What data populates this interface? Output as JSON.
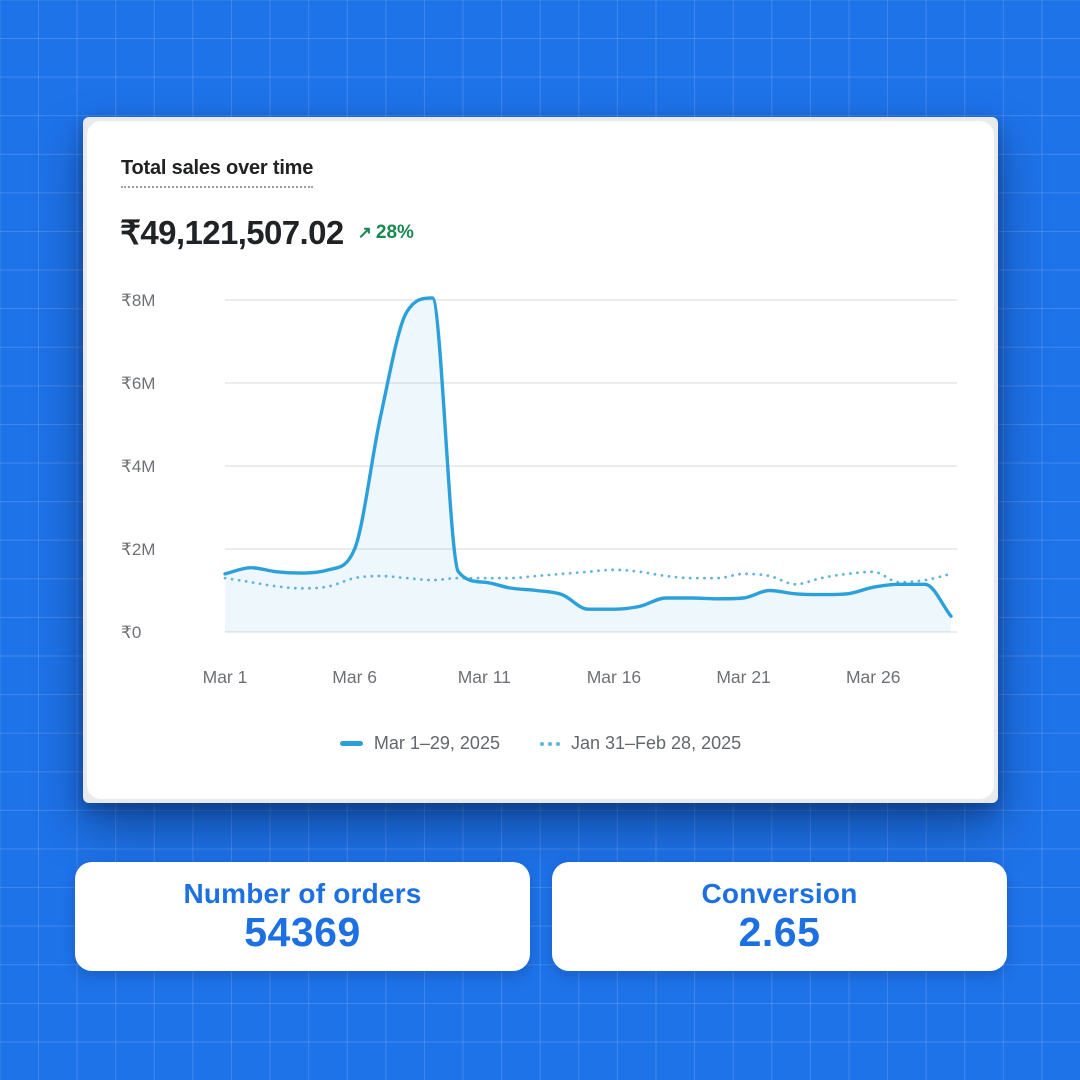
{
  "colors": {
    "page_background": "#1E73E9",
    "page_grid_line": "rgba(255,255,255,0.15)",
    "current_line": "#2CA0DA",
    "previous_line": "#62B4DF",
    "area_fill": "rgba(44,160,218,0.08)",
    "chart_gridline": "#e4e6e8",
    "axis_label": "#6d7175",
    "title_text": "#202223",
    "change_green": "#178a50",
    "stat_card_text": "#1D70E2"
  },
  "sales_card": {
    "title": "Total sales over time",
    "amount": "₹49,121,507.02",
    "change_arrow": "↗",
    "change": "28%"
  },
  "chart_data": {
    "type": "line",
    "title": "Total sales over time",
    "unit": "INR millions",
    "x": [
      "Mar 1",
      "Mar 2",
      "Mar 3",
      "Mar 4",
      "Mar 5",
      "Mar 6",
      "Mar 7",
      "Mar 8",
      "Mar 9",
      "Mar 10",
      "Mar 11",
      "Mar 12",
      "Mar 13",
      "Mar 14",
      "Mar 15",
      "Mar 16",
      "Mar 17",
      "Mar 18",
      "Mar 19",
      "Mar 20",
      "Mar 21",
      "Mar 22",
      "Mar 23",
      "Mar 24",
      "Mar 25",
      "Mar 26",
      "Mar 27",
      "Mar 28",
      "Mar 29"
    ],
    "series": [
      {
        "name": "Mar 1–29, 2025",
        "style": "solid",
        "color": "#2CA0DA",
        "values": [
          1.4,
          1.55,
          1.45,
          1.42,
          1.5,
          2.0,
          5.2,
          7.7,
          8.05,
          1.45,
          1.2,
          1.06,
          1.0,
          0.9,
          0.55,
          0.55,
          0.62,
          0.82,
          0.82,
          0.8,
          0.82,
          1.0,
          0.92,
          0.9,
          0.92,
          1.08,
          1.15,
          1.15,
          0.38
        ]
      },
      {
        "name": "Jan 31–Feb 28, 2025",
        "style": "dotted",
        "color": "#62B4DF",
        "values": [
          1.3,
          1.2,
          1.1,
          1.05,
          1.1,
          1.3,
          1.35,
          1.3,
          1.25,
          1.3,
          1.3,
          1.3,
          1.35,
          1.4,
          1.45,
          1.5,
          1.45,
          1.35,
          1.3,
          1.3,
          1.4,
          1.35,
          1.15,
          1.3,
          1.4,
          1.45,
          1.2,
          1.25,
          1.4
        ]
      }
    ],
    "ylim": [
      0,
      8.3
    ],
    "y_ticks": {
      "values": [
        8,
        6,
        4,
        2,
        0
      ],
      "labels": [
        "₹8M",
        "₹6M",
        "₹4M",
        "₹2M",
        "₹0"
      ]
    },
    "x_ticks": {
      "indices": [
        0,
        5,
        10,
        15,
        20,
        25
      ],
      "labels": [
        "Mar 1",
        "Mar 6",
        "Mar 11",
        "Mar 16",
        "Mar 21",
        "Mar 26"
      ]
    },
    "grid": "horizontal",
    "legend_position": "bottom"
  },
  "stat_cards": [
    {
      "label": "Number of orders",
      "value": "54369"
    },
    {
      "label": "Conversion",
      "value": "2.65"
    }
  ]
}
